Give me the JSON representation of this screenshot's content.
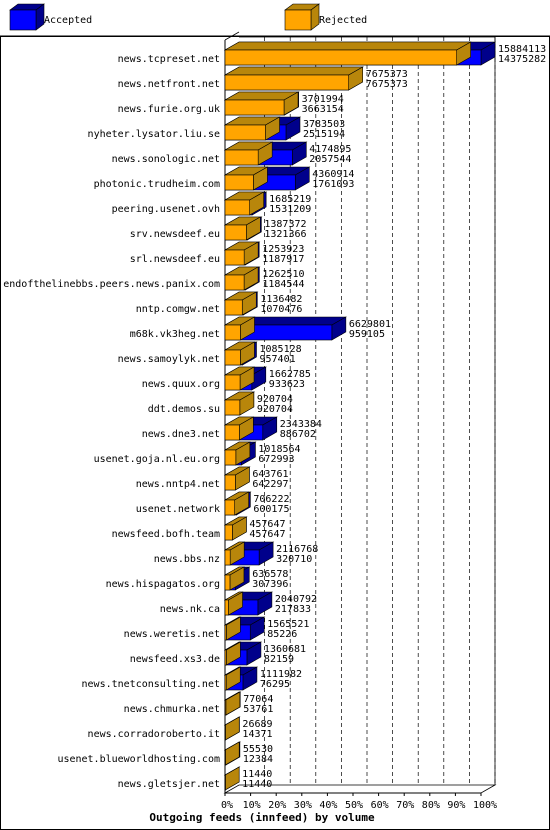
{
  "chart_data": {
    "type": "bar",
    "orientation": "horizontal",
    "stacked": false,
    "title": "Outgoing feeds (innfeed) by volume",
    "legend": {
      "placement": "top",
      "entries": [
        "Accepted",
        "Rejected"
      ]
    },
    "colors": {
      "Accepted": "#0000ff",
      "Rejected": "#ffa500",
      "Accepted_side": "#00008b",
      "Rejected_side": "#b8860b"
    },
    "grid": true,
    "xlim": [
      0,
      100
    ],
    "x_ticks": [
      "0%",
      "10%",
      "20%",
      "30%",
      "40%",
      "50%",
      "60%",
      "70%",
      "80%",
      "90%",
      "100%"
    ],
    "categories": [
      "news.tcpreset.net",
      "news.netfront.net",
      "news.furie.org.uk",
      "nyheter.lysator.liu.se",
      "news.sonologic.net",
      "photonic.trudheim.com",
      "peering.usenet.ovh",
      "srv.newsdeef.eu",
      "srl.newsdeef.eu",
      "endofthelinebbs.peers.news.panix.com",
      "nntp.comgw.net",
      "m68k.vk3heg.net",
      "news.samoylyk.net",
      "news.quux.org",
      "ddt.demos.su",
      "news.dne3.net",
      "usenet.goja.nl.eu.org",
      "news.nntp4.net",
      "usenet.network",
      "newsfeed.bofh.team",
      "news.bbs.nz",
      "news.hispagatos.org",
      "news.nk.ca",
      "news.weretis.net",
      "newsfeed.xs3.de",
      "news.tnetconsulting.net",
      "news.chmurka.net",
      "news.corradoroberto.it",
      "usenet.blueworldhosting.com",
      "news.gletsjer.net"
    ],
    "series": [
      {
        "name": "Accepted",
        "values": [
          15884113,
          7675373,
          3701994,
          3783503,
          4174895,
          4360914,
          1685219,
          1387372,
          1253923,
          1262510,
          1136482,
          6629801,
          1085128,
          1662785,
          920704,
          2343384,
          1018564,
          643761,
          706222,
          457647,
          2116768,
          636578,
          2040792,
          1565521,
          1360681,
          1111982,
          77064,
          26689,
          55530,
          11440
        ]
      },
      {
        "name": "Rejected",
        "values": [
          14375282,
          7675373,
          3663154,
          2515194,
          2057544,
          1761093,
          1531209,
          1321366,
          1187917,
          1184544,
          1070476,
          959105,
          957401,
          933623,
          920704,
          886702,
          672993,
          642297,
          600175,
          457647,
          320710,
          307396,
          217833,
          85226,
          82159,
          76295,
          53761,
          14371,
          12384,
          11440
        ]
      }
    ]
  }
}
